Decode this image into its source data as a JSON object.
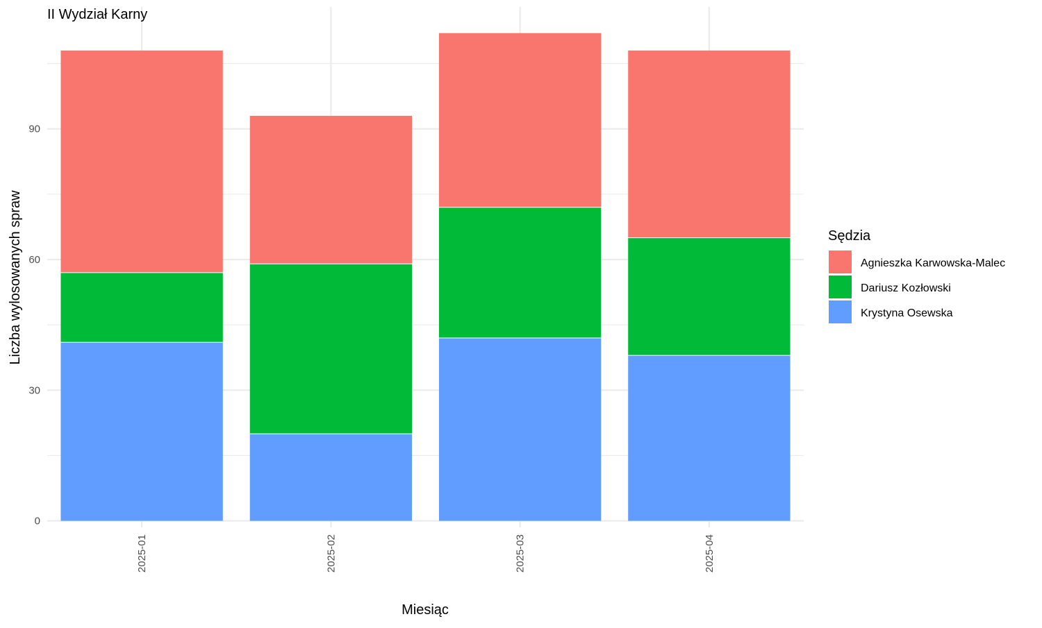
{
  "chart_data": {
    "type": "bar",
    "stacked": true,
    "title": "II Wydział Karny",
    "xlabel": "Miesiąc",
    "ylabel": "Liczba wylosowanych spraw",
    "categories": [
      "2025-01",
      "2025-02",
      "2025-03",
      "2025-04"
    ],
    "series": [
      {
        "name": "Krystyna Osewska",
        "color": "#619CFF",
        "values": [
          41,
          20,
          42,
          38
        ]
      },
      {
        "name": "Dariusz Kozłowski",
        "color": "#00BA38",
        "values": [
          16,
          39,
          30,
          27
        ]
      },
      {
        "name": "Agnieszka Karwowska-Malec",
        "color": "#F8766D",
        "values": [
          51,
          34,
          40,
          43
        ]
      }
    ],
    "legend_title": "Sędzia",
    "legend_order": [
      "Agnieszka Karwowska-Malec",
      "Dariusz Kozłowski",
      "Krystyna Osewska"
    ],
    "y_ticks": [
      0,
      30,
      60,
      90
    ],
    "ylim": [
      -1.5,
      118
    ],
    "grid": true,
    "legend_position": "right"
  }
}
